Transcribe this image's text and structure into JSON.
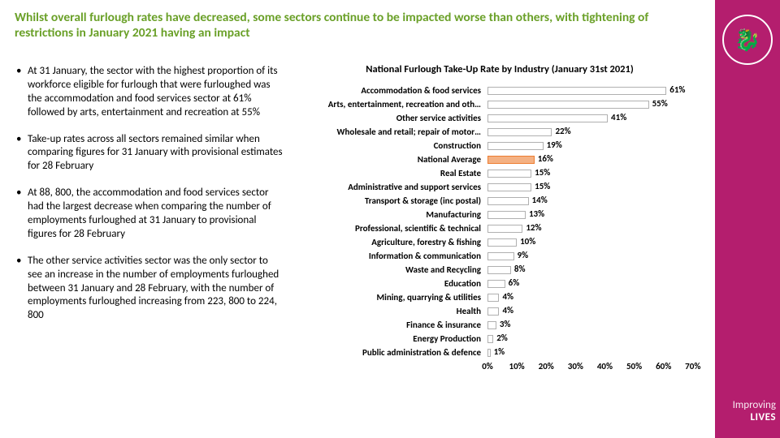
{
  "title": "Whilst overall furlough rates have decreased, some sectors continue to be impacted worse than others, with tightening of restrictions in January 2021 having an impact",
  "title_color": "#6aa028",
  "sidebar": {
    "bg": "#b41e6e",
    "brand_line1": "Improving",
    "brand_line2": "LIVES",
    "logo_glyph": "🐉"
  },
  "bullets": [
    "At 31 January, the sector with the highest proportion of its workforce eligible for furlough that were furloughed was the accommodation and food services sector at 61% followed by arts, entertainment and recreation at 55%",
    "Take-up rates across all sectors remained similar when comparing figures for 31 January with provisional estimates for 28 February",
    "At 88, 800, the accommodation and food services sector had the largest decrease when comparing the number of employments furloughed at 31 January to provisional figures for 28 February",
    "The other service activities sector was the only sector to see an increase in the number of employments furloughed between 31 January and 28 February, with the number of employments furloughed increasing from 223, 800 to 224, 800"
  ],
  "chart": {
    "type": "bar-horizontal",
    "title": "National Furlough Take-Up Rate by Industry (January 31st 2021)",
    "xmax": 72,
    "xticks": [
      0,
      10,
      20,
      30,
      40,
      50,
      60,
      70
    ],
    "bar_fill": "#ffffff",
    "bar_border": "#b0b0b0",
    "highlight_fill": "#f4b183",
    "highlight_border": "#ed7d31",
    "background": "#ffffff",
    "items": [
      {
        "label": "Accommodation & food services",
        "value": 61,
        "hl": false
      },
      {
        "label": "Arts, entertainment, recreation and oth…",
        "value": 55,
        "hl": false
      },
      {
        "label": "Other service activities",
        "value": 41,
        "hl": false
      },
      {
        "label": "Wholesale and retail; repair of motor…",
        "value": 22,
        "hl": false
      },
      {
        "label": "Construction",
        "value": 19,
        "hl": false
      },
      {
        "label": "National Average",
        "value": 16,
        "hl": true
      },
      {
        "label": "Real Estate",
        "value": 15,
        "hl": false
      },
      {
        "label": "Administrative and support services",
        "value": 15,
        "hl": false
      },
      {
        "label": "Transport & storage (inc postal)",
        "value": 14,
        "hl": false
      },
      {
        "label": "Manufacturing",
        "value": 13,
        "hl": false
      },
      {
        "label": "Professional, scientific & technical",
        "value": 12,
        "hl": false
      },
      {
        "label": "Agriculture, forestry & fishing",
        "value": 10,
        "hl": false
      },
      {
        "label": "Information & communication",
        "value": 9,
        "hl": false
      },
      {
        "label": "Waste and Recycling",
        "value": 8,
        "hl": false
      },
      {
        "label": "Education",
        "value": 6,
        "hl": false
      },
      {
        "label": "Mining, quarrying & utilities",
        "value": 4,
        "hl": false
      },
      {
        "label": "Health",
        "value": 4,
        "hl": false
      },
      {
        "label": "Finance & insurance",
        "value": 3,
        "hl": false
      },
      {
        "label": "Energy Production",
        "value": 2,
        "hl": false
      },
      {
        "label": "Public administration & defence",
        "value": 1,
        "hl": false
      }
    ]
  }
}
